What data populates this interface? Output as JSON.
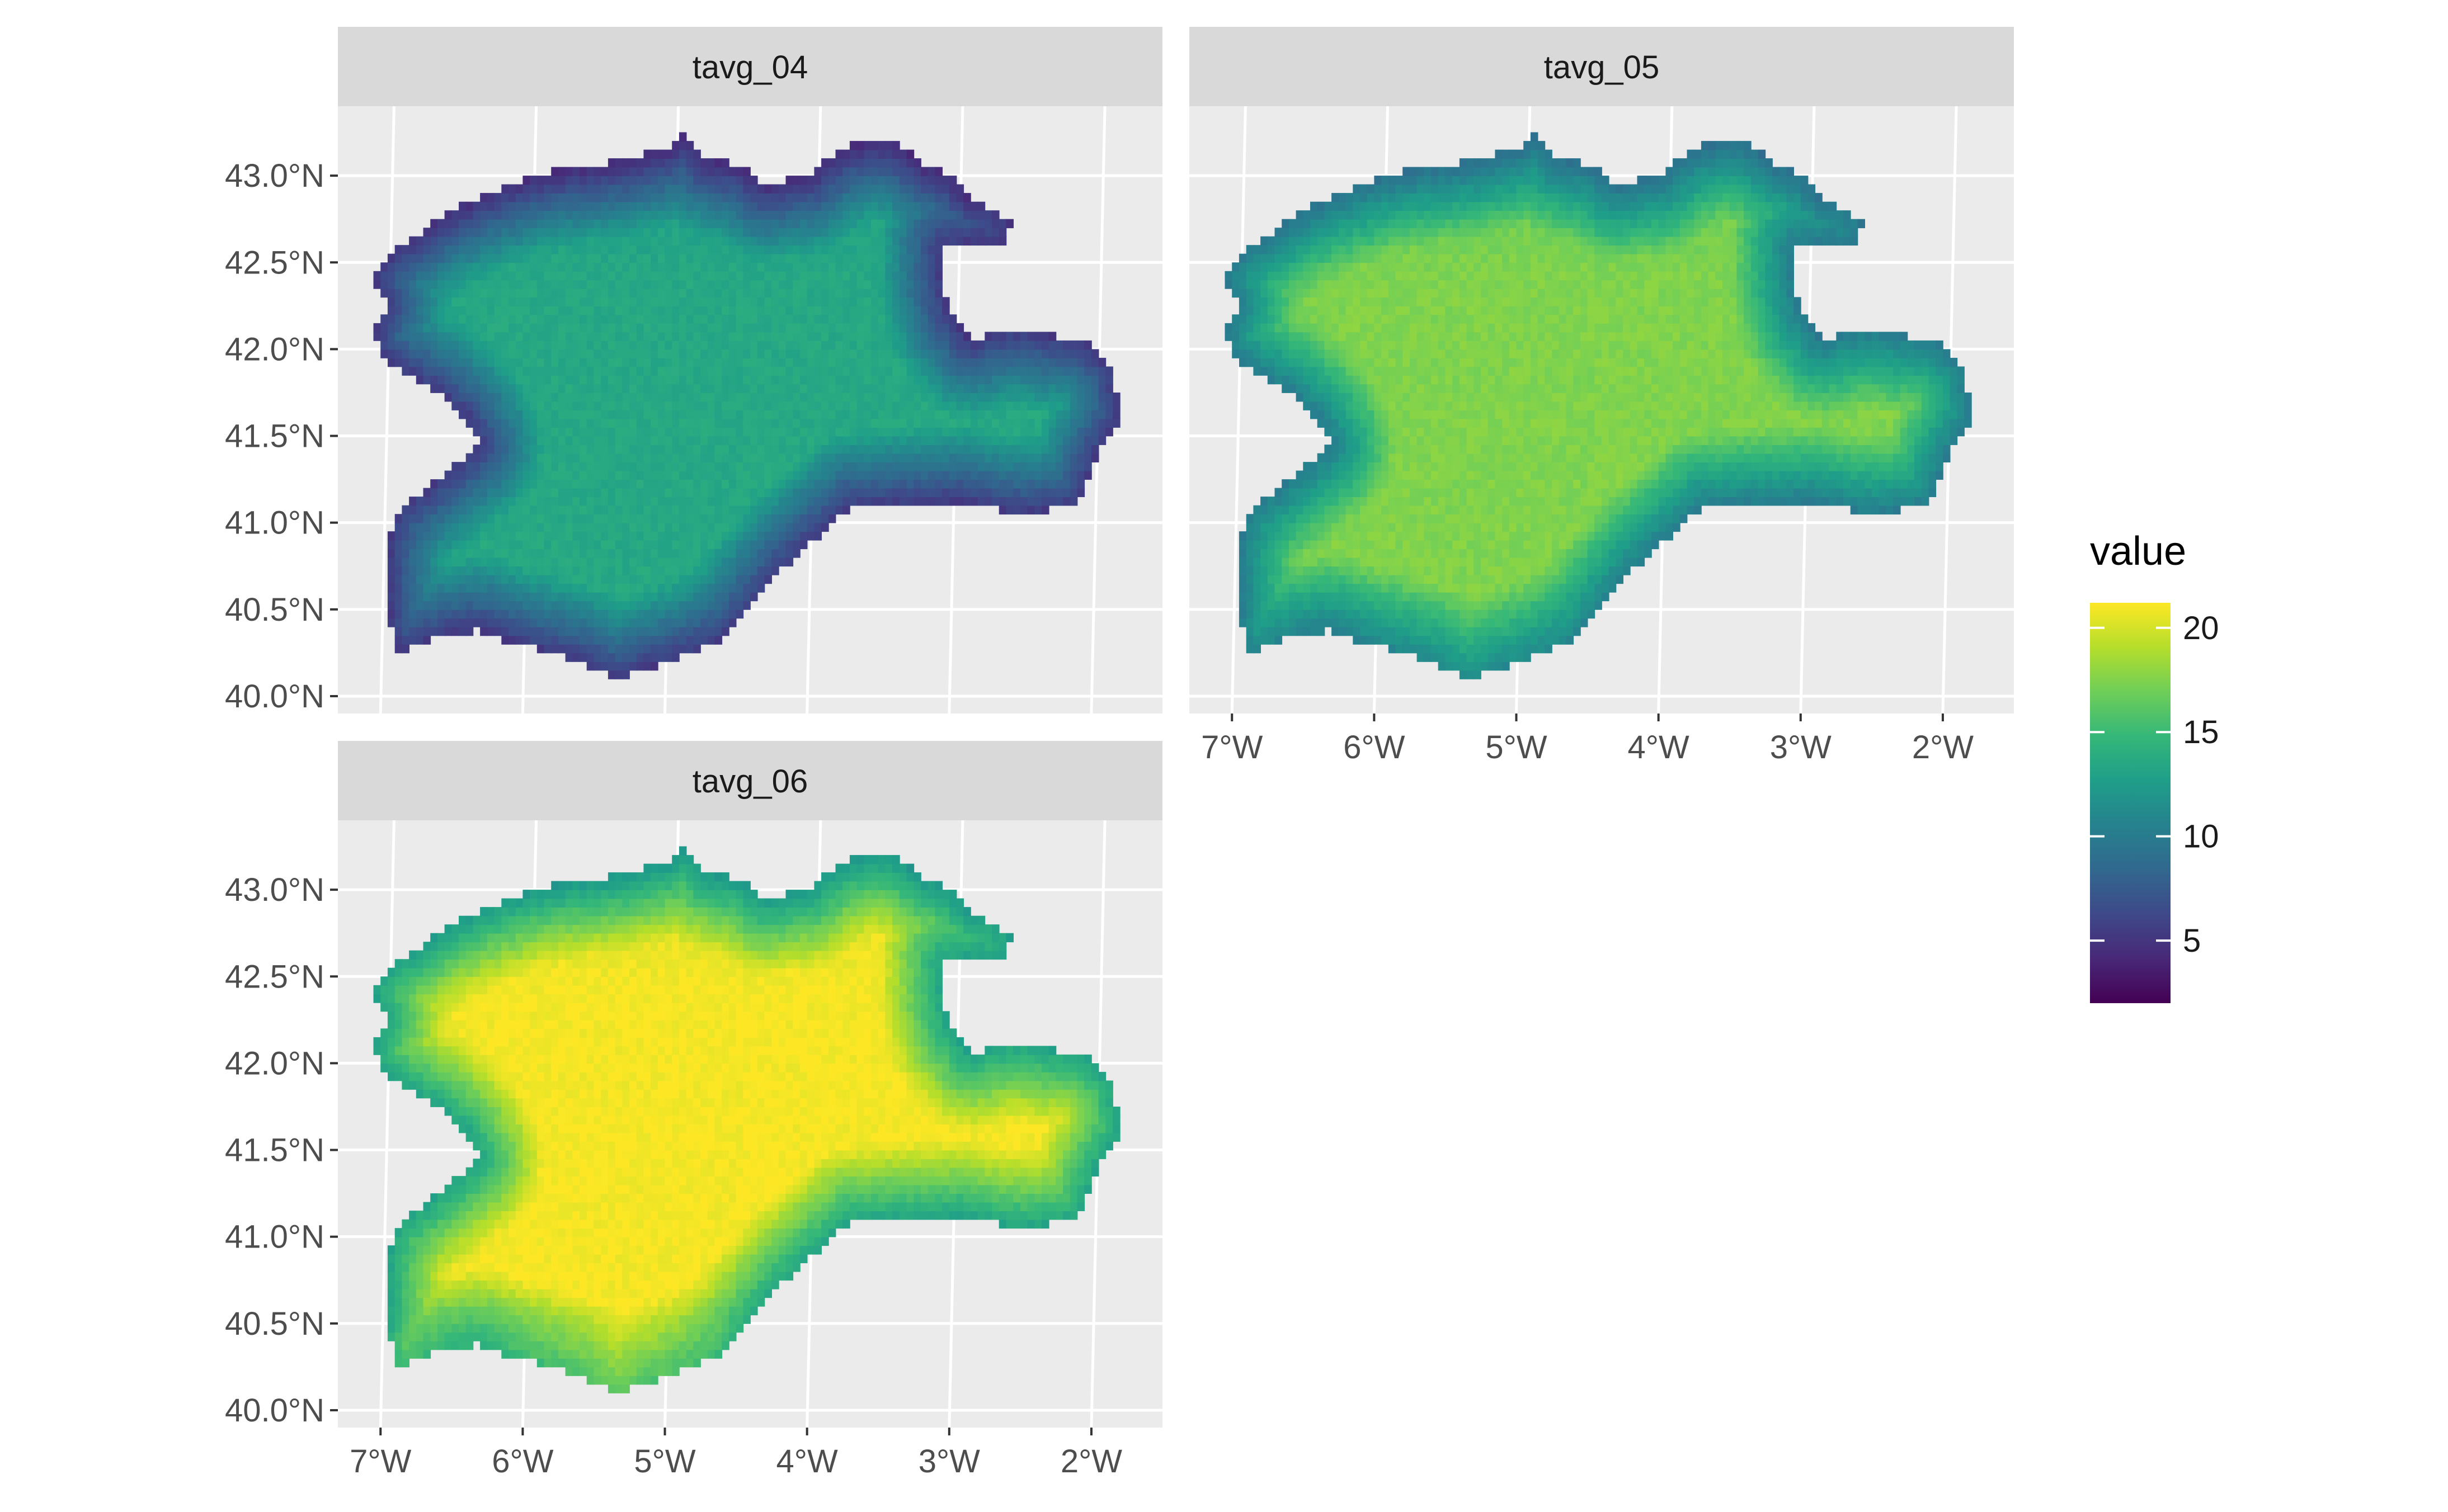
{
  "chart_data": {
    "type": "heatmap",
    "variable": "value",
    "panels": [
      {
        "title": "tavg_04",
        "min": 2.5,
        "max": 13.5
      },
      {
        "title": "tavg_05",
        "min": 7.5,
        "max": 17.5
      },
      {
        "title": "tavg_06",
        "min": 10.5,
        "max": 21.0
      }
    ],
    "x_axis": {
      "ticks": [
        "7°W",
        "6°W",
        "5°W",
        "4°W",
        "3°W",
        "2°W"
      ],
      "values": [
        -7,
        -6,
        -5,
        -4,
        -3,
        -2
      ],
      "range": [
        -7.3,
        -1.5
      ]
    },
    "y_axis": {
      "ticks": [
        "40.0°N",
        "40.5°N",
        "41.0°N",
        "41.5°N",
        "42.0°N",
        "42.5°N",
        "43.0°N"
      ],
      "values": [
        40.0,
        40.5,
        41.0,
        41.5,
        42.0,
        42.5,
        43.0
      ],
      "range": [
        39.9,
        43.4
      ]
    },
    "legend": {
      "title": "value",
      "ticks": [
        "5",
        "10",
        "15",
        "20"
      ],
      "tick_values": [
        5,
        10,
        15,
        20
      ],
      "range": [
        2,
        21.2
      ],
      "colorscale": "viridis",
      "position": "right"
    },
    "grid": true
  },
  "colors": {
    "panel_background": "#ebebeb",
    "strip_background": "#d9d9d9",
    "grid_line": "#ffffff",
    "axis_text": "#4d4d4d",
    "viridis": [
      "#440154",
      "#482878",
      "#3e4989",
      "#31688e",
      "#26828e",
      "#1f9e89",
      "#35b779",
      "#6ece58",
      "#b5de2b",
      "#fde725"
    ]
  }
}
